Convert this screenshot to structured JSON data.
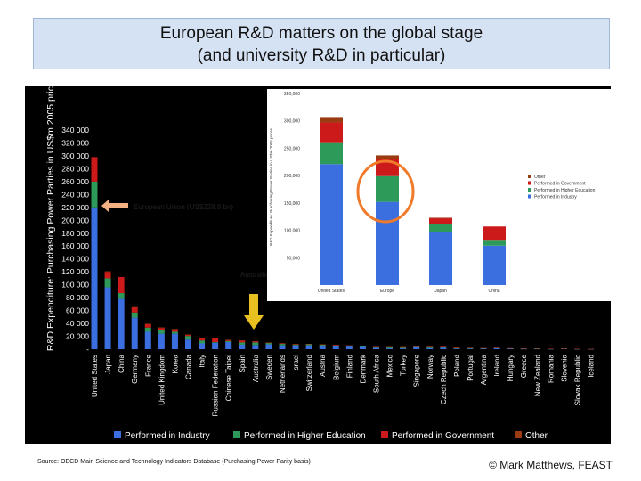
{
  "title": {
    "line1": "European R&D matters on the global stage",
    "line2": "(and university R&D in particular)"
  },
  "colors": {
    "industry": "#3b6fe0",
    "higher_education": "#2e9a5a",
    "government": "#cc1a1a",
    "other": "#9a3b12",
    "highlight_ring": "#f07a2a",
    "marker_arrow": "#e8c020",
    "eu_arrow": "#f4b183"
  },
  "annotations": {
    "eu_label": "European Union (US$228.8 bn)",
    "australia_label": "Australia"
  },
  "footer": {
    "source": "Source: OECD Main Science and Technology Indicators Database (Purchasing Power Parity basis)",
    "copyright": "© Mark Matthews, FEAST"
  },
  "chart_data": [
    {
      "type": "bar",
      "stacked": true,
      "ylabel": "R&D Expenditure: Purchasing Power Parties in US$m 2005 prices",
      "ylim": [
        0,
        340000
      ],
      "yticks": [
        "340 000",
        "320 000",
        "300 000",
        "280 000",
        "260 000",
        "240 000",
        "220 000",
        "200 000",
        "180 000",
        "160 000",
        "140 000",
        "120 000",
        "100 000",
        "80 000",
        "60 000",
        "40 000",
        "20 000",
        "-"
      ],
      "legend_position": "bottom",
      "categories": [
        "United States",
        "Japan",
        "China",
        "Germany",
        "France",
        "United Kingdom",
        "Korea",
        "Canada",
        "Italy",
        "Russian Federation",
        "Chinese Taipei",
        "Spain",
        "Australia",
        "Sweden",
        "Netherlands",
        "Israel",
        "Switzerland",
        "Austria",
        "Belgium",
        "Finland",
        "Denmark",
        "South Africa",
        "Mexico",
        "Turkey",
        "Singapore",
        "Norway",
        "Czech Republic",
        "Poland",
        "Portugal",
        "Argentina",
        "Ireland",
        "Hungary",
        "Greece",
        "New Zealand",
        "Romania",
        "Slovenia",
        "Slovak Republic",
        "Iceland"
      ],
      "series": [
        {
          "name": "Performed in Industry",
          "values": [
            220000,
            96000,
            78000,
            49000,
            27000,
            24000,
            24000,
            15000,
            9000,
            10000,
            11000,
            7000,
            6500,
            7500,
            6000,
            6000,
            6000,
            5000,
            4500,
            4000,
            3500,
            2000,
            1500,
            1300,
            2800,
            1800,
            2200,
            900,
            900,
            700,
            1600,
            900,
            500,
            600,
            300,
            700,
            200,
            150
          ]
        },
        {
          "name": "Performed in Higher Education",
          "values": [
            40000,
            14000,
            9000,
            8000,
            6500,
            6000,
            3000,
            5500,
            4500,
            1000,
            1700,
            3500,
            4000,
            2200,
            2200,
            1400,
            2000,
            2000,
            1500,
            1300,
            1200,
            800,
            1200,
            1300,
            900,
            1300,
            800,
            800,
            900,
            700,
            600,
            400,
            500,
            400,
            200,
            300,
            200,
            150
          ]
        },
        {
          "name": "Performed in Government",
          "values": [
            38000,
            10000,
            25000,
            8000,
            5500,
            3000,
            4000,
            2000,
            3500,
            6000,
            1800,
            2800,
            1500,
            500,
            900,
            400,
            200,
            400,
            500,
            600,
            300,
            500,
            700,
            500,
            400,
            500,
            900,
            1000,
            300,
            500,
            200,
            400,
            400,
            300,
            300,
            200,
            200,
            100
          ]
        },
        {
          "name": "Other",
          "values": [
            0,
            800,
            0,
            300,
            400,
            800,
            300,
            200,
            300,
            100,
            100,
            300,
            500,
            100,
            200,
            200,
            100,
            200,
            200,
            100,
            100,
            100,
            100,
            100,
            0,
            100,
            0,
            0,
            100,
            0,
            0,
            0,
            0,
            100,
            0,
            0,
            0,
            0
          ]
        }
      ]
    },
    {
      "type": "bar",
      "stacked": true,
      "ylabel": "R&D Expenditure: Purchasing Power Parties in US$m 2005 prices",
      "ylim": [
        0,
        350000
      ],
      "yticks": [
        "350,000",
        "300,000",
        "250,000",
        "200,000",
        "150,000",
        "100,000",
        "50,000"
      ],
      "legend_position": "right",
      "categories": [
        "United States",
        "Europe",
        "Japan",
        "China"
      ],
      "series": [
        {
          "name": "Performed in Industry",
          "values": [
            221000,
            152000,
            97000,
            72000
          ]
        },
        {
          "name": "Performed in Higher Education",
          "values": [
            40000,
            47000,
            15000,
            9000
          ]
        },
        {
          "name": "Performed in Government",
          "values": [
            36000,
            31000,
            10000,
            26000
          ]
        },
        {
          "name": "Other",
          "values": [
            10000,
            7000,
            1000,
            0
          ]
        }
      ]
    }
  ]
}
